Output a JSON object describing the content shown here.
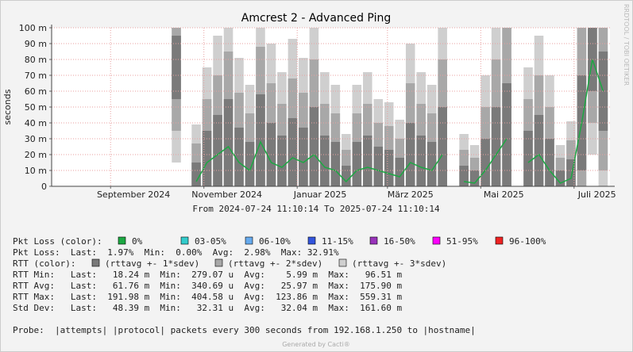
{
  "chart_data": {
    "type": "smokeping",
    "title": "Amcrest 2 - Advanced Ping",
    "y_label": "seconds",
    "watermark": "RRDTOOL / TOBI OETIKER",
    "period_from_word": "From",
    "period_to_word": "To",
    "xlim": [
      "2024-07-24 11:10:14",
      "2025-07-24 11:10:14"
    ],
    "xticks": [
      {
        "value": "2024-09",
        "label": "September 2024"
      },
      {
        "value": "2024-11",
        "label": "November 2024"
      },
      {
        "value": "2025-01",
        "label": "Januar 2025"
      },
      {
        "value": "2025-03",
        "label": "März 2025"
      },
      {
        "value": "2025-05",
        "label": "Mai 2025"
      },
      {
        "value": "2025-07",
        "label": "Juli 2025"
      }
    ],
    "ylim": [
      0,
      0.1
    ],
    "yticks": [
      0,
      {
        "value": 0.01,
        "label": "10 m"
      },
      {
        "value": 0.02,
        "label": "20 m"
      },
      {
        "value": 0.03,
        "label": "30 m"
      },
      {
        "value": 0.04,
        "label": "40 m"
      },
      {
        "value": 0.05,
        "label": "50 m"
      },
      {
        "value": 0.06,
        "label": "60 m"
      },
      {
        "value": 0.07,
        "label": "70 m"
      },
      {
        "value": 0.08,
        "label": "80 m"
      },
      {
        "value": 0.09,
        "label": "90 m"
      },
      {
        "value": 0.1,
        "label": "100 m"
      }
    ],
    "grid": true,
    "x": [
      "2024-10-14",
      "2024-10-20",
      "2024-10-27",
      "2024-11-03",
      "2024-11-10",
      "2024-11-17",
      "2024-11-24",
      "2024-12-01",
      "2024-12-08",
      "2024-12-15",
      "2024-12-22",
      "2024-12-29",
      "2025-01-05",
      "2025-01-12",
      "2025-01-19",
      "2025-01-26",
      "2025-02-02",
      "2025-02-09",
      "2025-02-16",
      "2025-02-23",
      "2025-03-02",
      "2025-03-09",
      "2025-03-16",
      "2025-03-23",
      "2025-03-30",
      "2025-04-06",
      "2025-04-13",
      "2025-04-20",
      "2025-04-27",
      "2025-05-04",
      "2025-05-11",
      "2025-05-18",
      "2025-05-25",
      "2025-06-01",
      "2025-06-08",
      "2025-06-15",
      "2025-06-22",
      "2025-06-29",
      "2025-07-06",
      "2025-07-13",
      "2025-07-20"
    ],
    "median": {
      "color": "#1ca843",
      "values": [
        0.075,
        null,
        0.003,
        0.015,
        0.02,
        0.025,
        0.015,
        0.01,
        0.028,
        0.015,
        0.012,
        0.018,
        0.015,
        0.02,
        0.012,
        0.01,
        0.003,
        0.01,
        0.012,
        0.01,
        0.008,
        0.006,
        0.015,
        0.012,
        0.01,
        0.02,
        null,
        0.003,
        0.002,
        0.01,
        0.02,
        0.03,
        null,
        0.015,
        0.02,
        0.01,
        0.002,
        0.005,
        0.04,
        0.08,
        0.06
      ]
    },
    "sdev": [
      0.02,
      null,
      0.012,
      0.02,
      0.025,
      0.03,
      0.022,
      0.018,
      0.03,
      0.025,
      0.02,
      0.025,
      0.022,
      0.03,
      0.02,
      0.018,
      0.01,
      0.018,
      0.02,
      0.015,
      0.015,
      0.012,
      0.025,
      0.02,
      0.018,
      0.03,
      null,
      0.01,
      0.008,
      0.02,
      0.03,
      0.035,
      null,
      0.02,
      0.025,
      0.02,
      0.008,
      0.012,
      0.03,
      0.02,
      0.025
    ],
    "bands": [
      {
        "name": "(rttavg +- 1*sdev)",
        "k": 1,
        "color": "#7a7a7a"
      },
      {
        "name": "(rttavg +- 2*sdev)",
        "k": 2,
        "color": "#a8a8a8"
      },
      {
        "name": "(rttavg +- 3*sdev)",
        "k": 3,
        "color": "#cfcfcf"
      }
    ],
    "rtt_color_label": "RTT (color):",
    "pkt_loss_label": "Pkt Loss (color):",
    "pkt_loss_legend": [
      {
        "name": "0%",
        "color": "#1ca843"
      },
      {
        "name": "03-05%",
        "color": "#33cccc"
      },
      {
        "name": "06-10%",
        "color": "#66aaee"
      },
      {
        "name": "11-15%",
        "color": "#3355dd"
      },
      {
        "name": "16-50%",
        "color": "#9933bb"
      },
      {
        "name": "51-95%",
        "color": "#ff00ff"
      },
      {
        "name": "96-100%",
        "color": "#ee2222"
      }
    ],
    "stats": [
      "Pkt Loss:  Last:  1.97%  Min:  0.00%  Avg:  2.98%  Max: 32.91%",
      "RTT Min:   Last:   18.24 m  Min:  279.07 u  Avg:    5.99 m  Max:   96.51 m",
      "RTT Avg:   Last:   61.76 m  Min:  340.69 u  Avg:   25.97 m  Max:  175.90 m",
      "RTT Max:   Last:  191.98 m  Min:  404.58 u  Avg:  123.86 m  Max:  559.31 m",
      "Std Dev:   Last:   48.39 m  Min:   32.31 u  Avg:   32.04 m  Max:  161.60 m"
    ],
    "probe": "Probe:  |attempts| |protocol| packets every 300 seconds from 192.168.1.250 to |hostname|",
    "footer": "Generated by Cacti®"
  }
}
